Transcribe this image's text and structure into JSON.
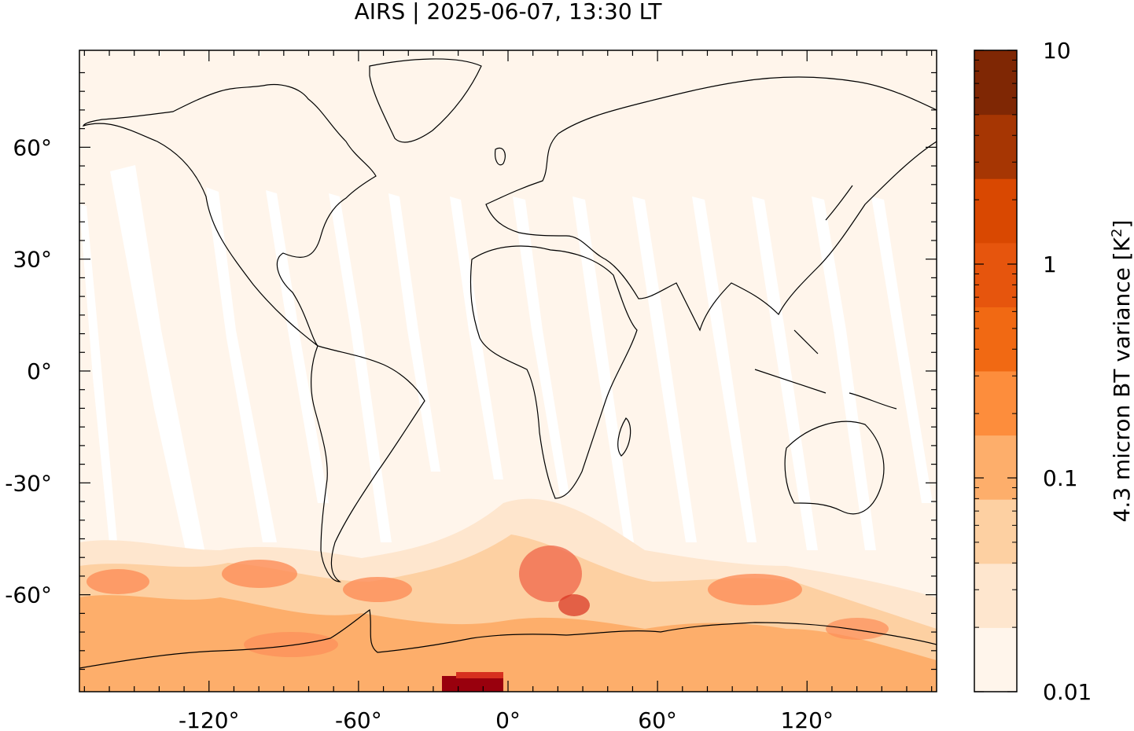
{
  "title": "AIRS | 2025-06-07, 13:30 LT",
  "map": {
    "x_ticks": [
      "-120°",
      "-60°",
      "0°",
      "60°",
      "120°"
    ],
    "y_ticks": [
      "60°",
      "30°",
      "0°",
      "-30°",
      "-60°"
    ],
    "x_tick_values": [
      -120,
      -60,
      0,
      60,
      120
    ],
    "y_tick_values": [
      60,
      30,
      0,
      -30,
      -60
    ],
    "lon_range": [
      -172,
      172
    ],
    "lat_range": [
      -86,
      86
    ],
    "background_color": "#fff5eb",
    "swath_gap_color": "#ffffff"
  },
  "colorbar": {
    "label": "4.3 micron BT variance [K",
    "label_superscript": "2",
    "label_close": "]",
    "scale": "log",
    "tick_labels": [
      "10",
      "1",
      "0.1",
      "0.01"
    ],
    "tick_values": [
      10,
      1,
      0.1,
      0.01
    ],
    "colors": [
      "#fff5eb",
      "#fee6ce",
      "#fdd0a2",
      "#fdae6b",
      "#fd8d3c",
      "#f16913",
      "#e6550d",
      "#d94801",
      "#a63603",
      "#7f2704"
    ]
  }
}
